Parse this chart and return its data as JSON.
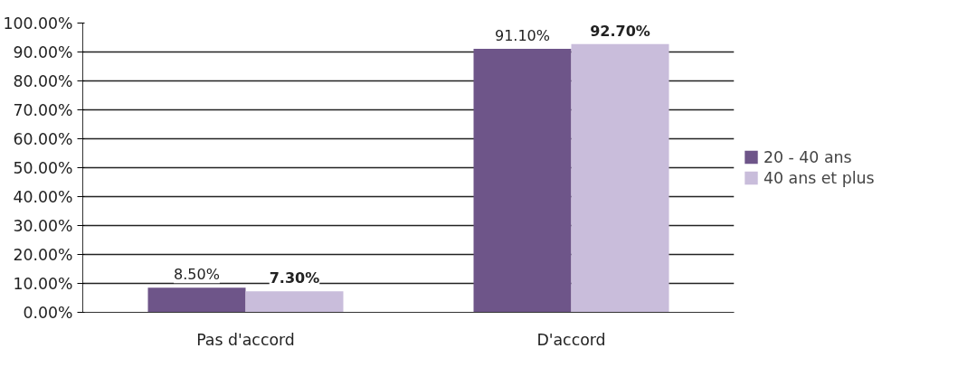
{
  "chart_data": {
    "type": "bar",
    "categories": [
      "Pas d'accord",
      "D'accord"
    ],
    "series": [
      {
        "name": "20 - 40 ans",
        "color": "#6e5589",
        "values": [
          8.5,
          91.1
        ],
        "value_labels": [
          "8.50%",
          "91.10%"
        ]
      },
      {
        "name": "40 ans et plus",
        "color": "#c9bddb",
        "values": [
          7.3,
          92.7
        ],
        "value_labels": [
          "7.30%",
          "92.70%"
        ]
      }
    ],
    "ylim": [
      0,
      100
    ],
    "yticks": [
      {
        "value": 0,
        "label": "0.00%"
      },
      {
        "value": 10,
        "label": "10.00%"
      },
      {
        "value": 20,
        "label": "20.00%"
      },
      {
        "value": 30,
        "label": "30.00%"
      },
      {
        "value": 40,
        "label": "40.00%"
      },
      {
        "value": 50,
        "label": "50.00%"
      },
      {
        "value": 60,
        "label": "60.00%"
      },
      {
        "value": 70,
        "label": "70.00%"
      },
      {
        "value": 80,
        "label": "80.00%"
      },
      {
        "value": 90,
        "label": "90.00%"
      },
      {
        "value": 100,
        "label": "100.00%"
      }
    ],
    "grid": "y",
    "legend": "right"
  }
}
